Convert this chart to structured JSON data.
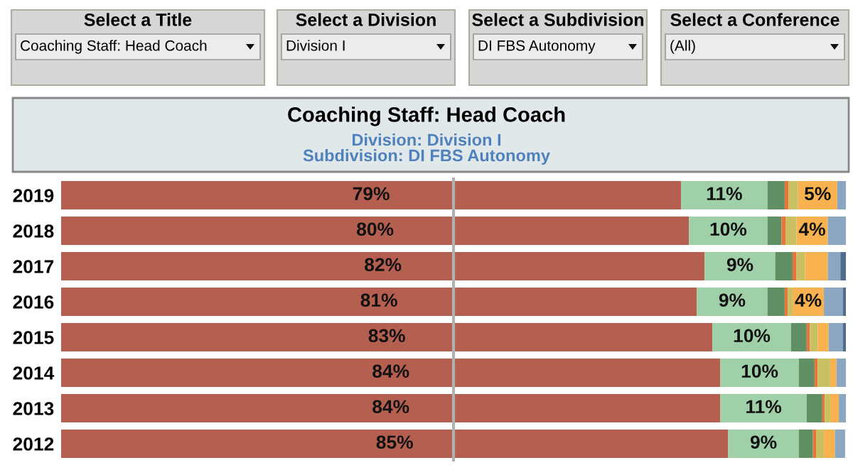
{
  "chart_data": {
    "type": "bar",
    "orientation": "horizontal",
    "stacked": true,
    "title": "Coaching Staff: Head Coach",
    "subtitle": "Division: Division I\nSubdivision: DI FBS Autonomy",
    "annotations": [
      "Select a Title",
      "Coaching Staff: Head Coach",
      "Select a Division",
      "Division I",
      "Select a Subdivision",
      "DI FBS Autonomy",
      "Select a Conference",
      "(All)"
    ],
    "categories": [
      "2019",
      "2018",
      "2017",
      "2016",
      "2015",
      "2014",
      "2013",
      "2012"
    ],
    "xlim": [
      0,
      100
    ],
    "tick_labels": "y",
    "ref_lines": [
      {
        "axis": "x",
        "value": 50,
        "color": "#b0b0b0"
      }
    ],
    "series": [
      {
        "color": "#b55f50",
        "values": [
          79,
          80,
          82,
          81,
          83,
          84,
          84,
          85
        ],
        "value_labels": [
          "79%",
          "80%",
          "82%",
          "81%",
          "83%",
          "84%",
          "84%",
          "85%"
        ]
      },
      {
        "color": "#a0d0a8",
        "values": [
          11,
          10,
          9,
          9,
          10,
          10,
          11,
          9
        ],
        "value_labels": [
          "11%",
          "10%",
          "9%",
          "9%",
          "10%",
          "10%",
          "11%",
          "9%"
        ]
      },
      {
        "color": "#5f8f63",
        "values": [
          2.2,
          1.8,
          2.2,
          2.2,
          2,
          2,
          2,
          1.8
        ]
      },
      {
        "color": "#e8743b",
        "values": [
          0.5,
          0.5,
          0.5,
          0.4,
          0.4,
          0.4,
          0.3,
          0.4
        ]
      },
      {
        "color": "#c9c063",
        "values": [
          1.2,
          1.4,
          1.1,
          0.6,
          1,
          1.6,
          0.7,
          1
        ]
      },
      {
        "color": "#f8b24f",
        "values": [
          5,
          4,
          2.9,
          4,
          1.4,
          0.8,
          1.1,
          1.4
        ],
        "value_labels": [
          "5%",
          "4%",
          null,
          "4%",
          null,
          null,
          null,
          null
        ]
      },
      {
        "color": "#8aa6c1",
        "values": [
          1.1,
          2.3,
          1.6,
          2.4,
          1.8,
          1.2,
          0.9,
          1.3
        ]
      },
      {
        "color": "#4e6d8e",
        "values": [
          0,
          0,
          0.7,
          0.4,
          0.4,
          0,
          0,
          0
        ]
      }
    ]
  }
}
